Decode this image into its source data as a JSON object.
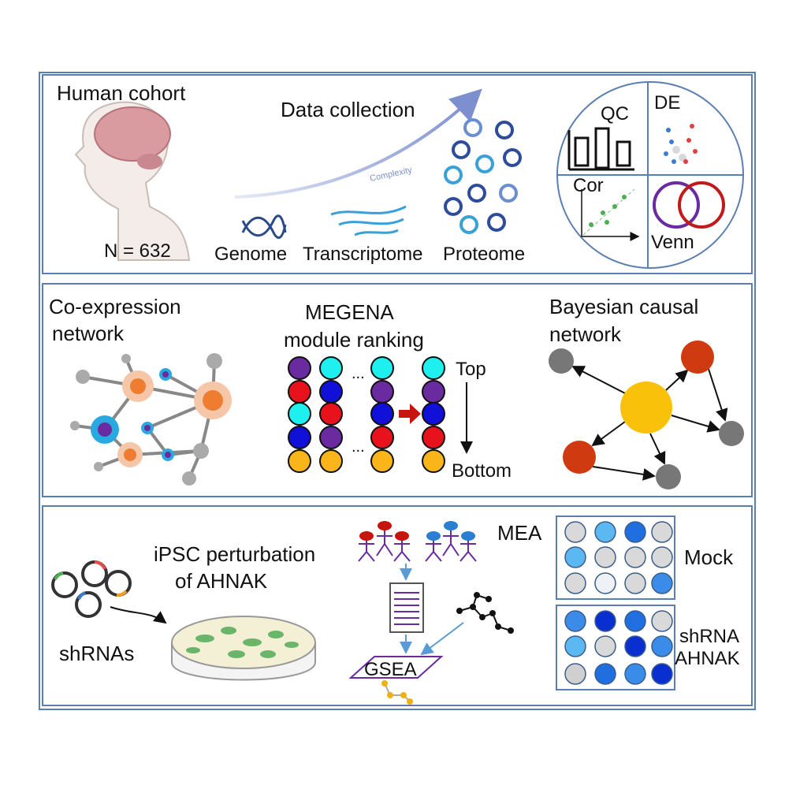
{
  "panels": [
    {
      "title": "Human cohort",
      "cohort_size": "N = 632",
      "collection": "Data collection",
      "complexity": "Complexity",
      "omics": [
        "Genome",
        "Transcriptome",
        "Proteome"
      ],
      "qc": [
        "QC",
        "DE",
        "Cor",
        "Venn"
      ]
    },
    {
      "coexpression": [
        "Co-expression",
        "network"
      ],
      "megena": [
        "MEGENA",
        "module ranking"
      ],
      "ellipsis": "...",
      "rank_top": "Top",
      "rank_bottom": "Bottom",
      "bayesian": [
        "Bayesian causal",
        "network"
      ]
    },
    {
      "perturbation": [
        "iPSC perturbation",
        "of AHNAK"
      ],
      "shrnas": "shRNAs",
      "gsea": "GSEA",
      "mea": "MEA",
      "mock": "Mock",
      "knockdown": [
        "shRNA",
        "AHNAK"
      ]
    }
  ]
}
